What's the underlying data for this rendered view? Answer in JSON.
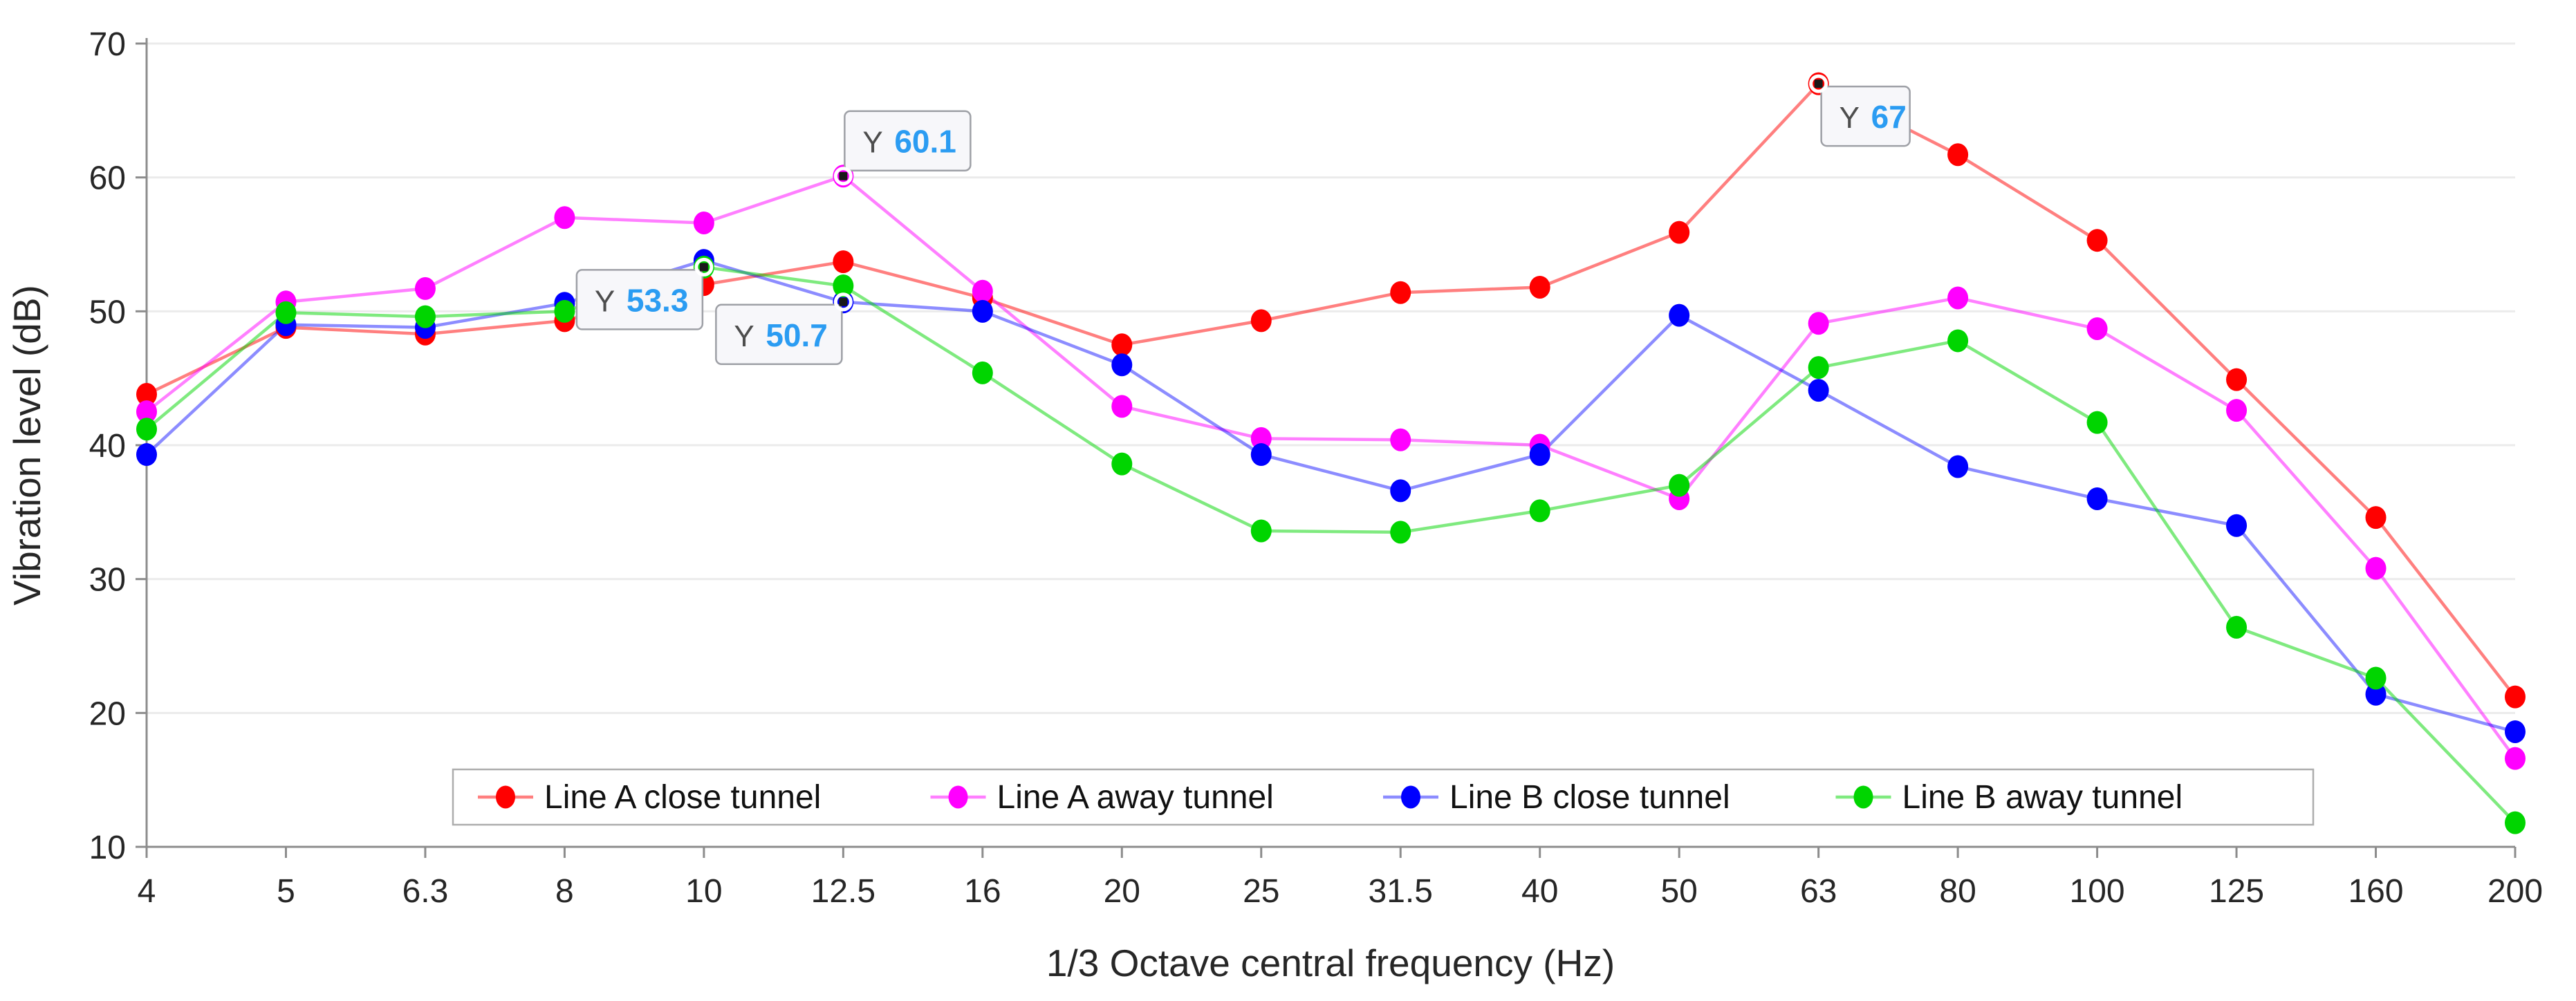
{
  "chart_data": {
    "type": "line",
    "title": "",
    "xlabel": "1/3 Octave central frequency (Hz)",
    "ylabel": "Vibration level (dB)",
    "categories": [
      "4",
      "5",
      "6.3",
      "8",
      "10",
      "12.5",
      "16",
      "20",
      "25",
      "31.5",
      "40",
      "50",
      "63",
      "80",
      "100",
      "125",
      "160",
      "200"
    ],
    "ylim": [
      10,
      70
    ],
    "yticks": [
      10,
      20,
      30,
      40,
      50,
      60,
      70
    ],
    "grid": "horizontal",
    "legend_position": "bottom-center-inside",
    "series": [
      {
        "name": "Line A close tunnel",
        "color": "#ff0000",
        "line_opacity": 0.5,
        "values": [
          43.8,
          48.8,
          48.3,
          49.3,
          52.0,
          53.7,
          51.0,
          47.5,
          49.3,
          51.4,
          51.8,
          55.9,
          67.0,
          61.7,
          55.3,
          44.9,
          34.6,
          21.2
        ]
      },
      {
        "name": "Line A away tunnel",
        "color": "#ff00ff",
        "line_opacity": 0.5,
        "values": [
          42.5,
          50.7,
          51.7,
          57.0,
          56.6,
          60.1,
          51.5,
          42.9,
          40.5,
          40.4,
          40.0,
          36.0,
          49.1,
          51.0,
          48.7,
          42.6,
          30.8,
          16.6
        ]
      },
      {
        "name": "Line B close tunnel",
        "color": "#0000ff",
        "line_opacity": 0.45,
        "values": [
          39.3,
          49.0,
          48.8,
          50.6,
          53.8,
          50.7,
          50.0,
          46.0,
          39.3,
          36.6,
          39.3,
          49.7,
          44.1,
          38.4,
          36.0,
          34.0,
          21.4,
          18.6
        ]
      },
      {
        "name": "Line B away tunnel",
        "color": "#00d500",
        "line_opacity": 0.5,
        "values": [
          41.2,
          49.9,
          49.6,
          50.0,
          53.3,
          51.9,
          45.4,
          38.6,
          33.6,
          33.5,
          35.1,
          37.0,
          45.8,
          47.8,
          41.7,
          26.4,
          22.6,
          11.8
        ]
      }
    ],
    "datatips": [
      {
        "series_index": 1,
        "category": "12.5",
        "label": "Y",
        "value": "60.1",
        "placement": "top-right"
      },
      {
        "series_index": 3,
        "category": "10",
        "label": "Y",
        "value": "53.3",
        "placement": "bottom-left"
      },
      {
        "series_index": 2,
        "category": "12.5",
        "label": "Y",
        "value": "50.7",
        "placement": "bottom-left"
      },
      {
        "series_index": 0,
        "category": "63",
        "label": "Y",
        "value": "67",
        "placement": "bottom-right"
      }
    ],
    "style": {
      "grid_color": "#ebebeb",
      "axis_color": "#8c8c8c",
      "tick_label_color": "#262626",
      "datatip_bg": "#f7f7fa",
      "datatip_border": "#9ea0a6",
      "datatip_value_color": "#2b9cf2",
      "legend_border": "#adadad",
      "legend_bg": "#ffffff"
    }
  }
}
